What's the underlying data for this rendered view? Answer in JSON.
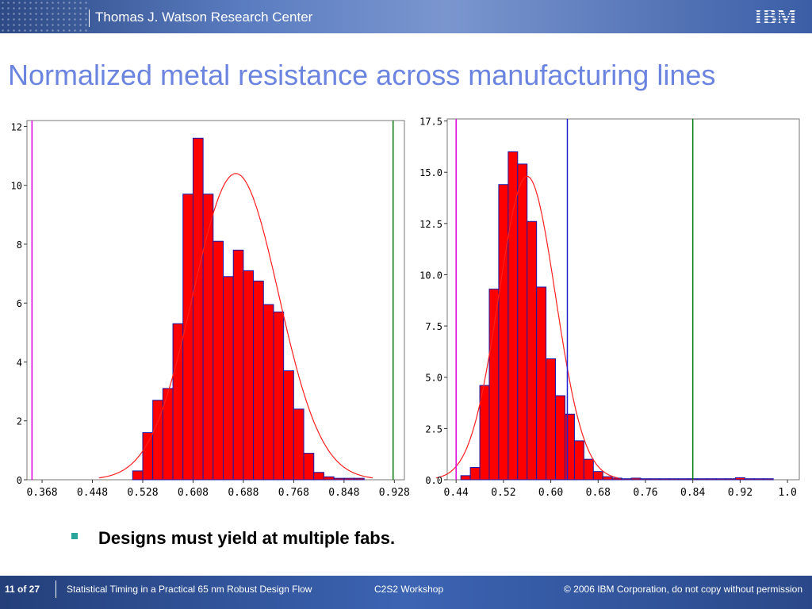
{
  "header": {
    "center_name": "Thomas J. Watson Research Center",
    "logo_text": "IBM"
  },
  "slide_title": "Normalized metal resistance across manufacturing lines",
  "bullet_text": "Designs must yield at multiple fabs.",
  "footer": {
    "page": "11 of 27",
    "talk": "Statistical Timing in a Practical 65 nm Robust Design Flow",
    "venue": "C2S2 Workshop",
    "copyright": "© 2006 IBM Corporation, do not copy without permission"
  },
  "colors": {
    "bar_fill": "#ff0000",
    "bar_edge": "#1a1aa8",
    "curve": "#ff2020",
    "magenta_line": "#dd00dd",
    "green_line": "#0a7a0a",
    "blue_line": "#2020d0",
    "title": "#6b84e0"
  },
  "chart_data": [
    {
      "type": "bar",
      "title": "",
      "xlabel": "",
      "ylabel": "",
      "xlim": [
        0.344,
        0.944
      ],
      "ylim": [
        0,
        12.2
      ],
      "yticks": [
        0,
        2,
        4,
        6,
        8,
        10,
        12
      ],
      "xticks": [
        "0.368",
        "0.448",
        "0.528",
        "0.608",
        "0.688",
        "0.768",
        "0.848",
        "0.928"
      ],
      "bin_width": 0.016,
      "bin_starts": [
        0.512,
        0.528,
        0.544,
        0.56,
        0.576,
        0.592,
        0.608,
        0.624,
        0.64,
        0.656,
        0.672,
        0.688,
        0.704,
        0.72,
        0.736,
        0.752,
        0.768,
        0.784,
        0.8,
        0.816,
        0.832,
        0.848,
        0.864
      ],
      "values": [
        0.3,
        1.6,
        2.7,
        3.1,
        5.3,
        9.7,
        11.6,
        9.7,
        8.1,
        6.9,
        7.8,
        7.1,
        6.75,
        5.95,
        5.7,
        3.7,
        2.4,
        0.9,
        0.25,
        0.1,
        0.05,
        0.05,
        0.05
      ],
      "fit": {
        "mean": 0.676,
        "sd": 0.068,
        "peak": 10.4
      },
      "vlines": [
        {
          "x": 0.352,
          "color": "magenta"
        },
        {
          "x": 0.926,
          "color": "green"
        }
      ]
    },
    {
      "type": "bar",
      "title": "",
      "xlabel": "",
      "ylabel": "",
      "xlim": [
        0.425,
        1.02
      ],
      "ylim": [
        0,
        17.6
      ],
      "yticks": [
        "0.0",
        "2.5",
        "5.0",
        "7.5",
        "10.0",
        "12.5",
        "15.0",
        "17.5"
      ],
      "ytick_values": [
        0,
        2.5,
        5.0,
        7.5,
        10.0,
        12.5,
        15.0,
        17.5
      ],
      "xticks": [
        "0.44",
        "0.52",
        "0.60",
        "0.68",
        "0.76",
        "0.84",
        "0.92",
        "1.0"
      ],
      "xtick_values": [
        0.44,
        0.52,
        0.6,
        0.68,
        0.76,
        0.84,
        0.92,
        1.0
      ],
      "bin_width": 0.016,
      "bin_starts": [
        0.448,
        0.464,
        0.48,
        0.496,
        0.512,
        0.528,
        0.544,
        0.56,
        0.576,
        0.592,
        0.608,
        0.624,
        0.64,
        0.656,
        0.672,
        0.688,
        0.704,
        0.72,
        0.736,
        0.752,
        0.768,
        0.784,
        0.8,
        0.816,
        0.832,
        0.848,
        0.864,
        0.88,
        0.896,
        0.912,
        0.928,
        0.944,
        0.96
      ],
      "values": [
        0.2,
        0.6,
        4.6,
        9.3,
        14.4,
        16.0,
        15.4,
        12.6,
        9.4,
        5.9,
        4.1,
        3.2,
        1.9,
        1.0,
        0.4,
        0.15,
        0.08,
        0.05,
        0.08,
        0.05,
        0.05,
        0.05,
        0.05,
        0.05,
        0.05,
        0.05,
        0.05,
        0.05,
        0.05,
        0.1,
        0.05,
        0.05,
        0.05
      ],
      "fit": {
        "mean": 0.56,
        "sd": 0.048,
        "peak": 14.8
      },
      "vlines": [
        {
          "x": 0.44,
          "color": "magenta"
        },
        {
          "x": 0.628,
          "color": "blue"
        },
        {
          "x": 0.84,
          "color": "green"
        }
      ]
    }
  ]
}
